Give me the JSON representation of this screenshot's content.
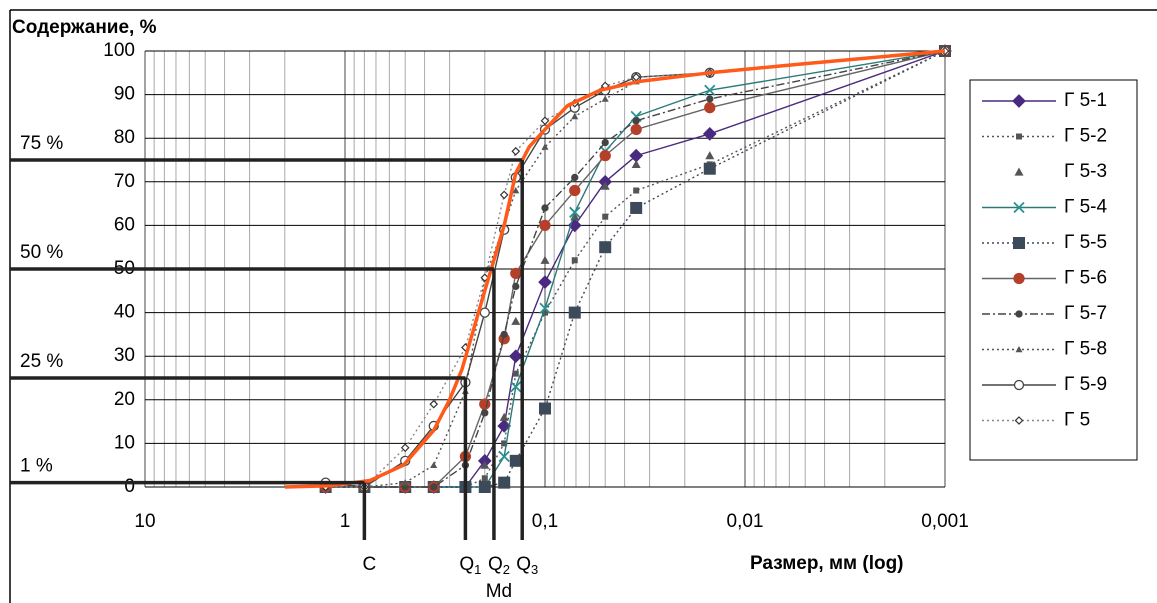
{
  "chart_data": {
    "type": "line",
    "y_label": "Содержание, %",
    "x_label": "Размер, мм (log)",
    "xlog": true,
    "xlim": [
      10,
      0.001
    ],
    "xticks": [
      10,
      1,
      {
        "value": 0.1,
        "label": "0,1"
      },
      {
        "value": 0.01,
        "label": "0,01"
      },
      {
        "value": 0.001,
        "label": "0,001"
      }
    ],
    "ylim": [
      0,
      100
    ],
    "yticks": [
      0,
      10,
      20,
      30,
      40,
      50,
      60,
      70,
      80,
      90,
      100
    ],
    "grid": true,
    "legend": "right",
    "x": [
      1.25,
      0.8,
      0.5,
      0.36,
      0.25,
      0.2,
      0.16,
      0.14,
      0.1,
      0.071,
      0.05,
      0.035,
      0.015,
      0.001
    ],
    "series": [
      {
        "name": "Г 5-1",
        "color": "#4a2a80",
        "line_color": "#4a2a80",
        "line": "solid",
        "marker": "diamond",
        "values": [
          0,
          0,
          0,
          0,
          0,
          6,
          14,
          30,
          47,
          60,
          70,
          76,
          81,
          100
        ]
      },
      {
        "name": "Г 5-2",
        "color": "#555555",
        "line_color": "#555555",
        "line": "dotted",
        "marker": "square-small",
        "values": [
          0,
          0,
          0,
          0,
          0,
          2,
          10,
          26,
          40,
          52,
          62,
          68,
          74,
          100
        ]
      },
      {
        "name": "Г 5-3",
        "color": "#555555",
        "line_color": "#555555",
        "line": "none",
        "marker": "triangle",
        "values": [
          0,
          0,
          0,
          0,
          0,
          5,
          16,
          38,
          52,
          62,
          69,
          74,
          76,
          100
        ]
      },
      {
        "name": "Г 5-4",
        "color": "#2a9090",
        "line_color": "#2a7a7a",
        "line": "solid",
        "marker": "x",
        "values": [
          0,
          0,
          0,
          0,
          0,
          0,
          7,
          23,
          41,
          63,
          77,
          85,
          91,
          100
        ]
      },
      {
        "name": "Г 5-5",
        "color": "#3d4a5a",
        "line_color": "#3d4a5a",
        "line": "dotted",
        "marker": "square",
        "values": [
          0,
          0,
          0,
          0,
          0,
          0,
          1,
          6,
          18,
          40,
          55,
          64,
          73,
          100
        ]
      },
      {
        "name": "Г 5-6",
        "color": "#b5402a",
        "line_color": "#666666",
        "line": "solid",
        "marker": "circle",
        "values": [
          0,
          0,
          0,
          0,
          7,
          19,
          34,
          49,
          60,
          68,
          76,
          82,
          87,
          100
        ]
      },
      {
        "name": "Г 5-7",
        "color": "#444444",
        "line_color": "#444444",
        "line": "dashdot",
        "marker": "circle-small",
        "values": [
          0,
          0,
          0,
          0,
          5,
          17,
          35,
          46,
          64,
          71,
          79,
          84,
          89,
          100
        ]
      },
      {
        "name": "Г 5-8",
        "color": "#555555",
        "line_color": "#555555",
        "line": "dotted",
        "marker": "triangle-small",
        "values": [
          0,
          0,
          1,
          5,
          22,
          48,
          60,
          68,
          78,
          85,
          89,
          93,
          95,
          100
        ]
      },
      {
        "name": "Г 5-9",
        "color": "#444444",
        "line_color": "#444444",
        "line": "solid",
        "marker": "circle-open",
        "values": [
          1,
          0,
          6,
          14,
          24,
          40,
          59,
          71,
          82,
          87,
          91,
          94,
          95,
          100
        ]
      },
      {
        "name": "Г 5",
        "color": "#333333",
        "line_color": "#888888",
        "line": "dotted",
        "marker": "diamond-open",
        "values": [
          0,
          0,
          9,
          19,
          32,
          48,
          67,
          77,
          84,
          88,
          92,
          94,
          95,
          100
        ]
      },
      {
        "color": "#ff5a1a",
        "line_color": "#ff5a1a",
        "line": "solid",
        "line_width": 3.5,
        "marker": "none",
        "x": [
          2,
          1.19,
          0.75,
          0.51,
          0.36,
          0.3,
          0.26,
          0.2,
          0.16,
          0.14,
          0.12,
          0.1,
          0.077,
          0.053,
          0.034,
          0.015,
          0.0053,
          0.001
        ],
        "values": [
          0,
          0.3,
          1.5,
          5,
          13,
          20,
          27,
          45,
          60,
          72,
          78,
          82,
          87.5,
          91,
          93,
          95,
          97,
          100
        ]
      }
    ],
    "quantiles": [
      {
        "level": 1,
        "level_label": "1 %",
        "x": 0.8,
        "label": "C"
      },
      {
        "level": 25,
        "level_label": "25 %",
        "x": 0.25,
        "label": "Q",
        "subscript": "1"
      },
      {
        "level": 50,
        "level_label": "50 %",
        "x": 0.18,
        "label": "Q",
        "subscript": "2",
        "label2": "Md"
      },
      {
        "level": 75,
        "level_label": "75 %",
        "x": 0.13,
        "label": "Q",
        "subscript": "3"
      }
    ]
  }
}
